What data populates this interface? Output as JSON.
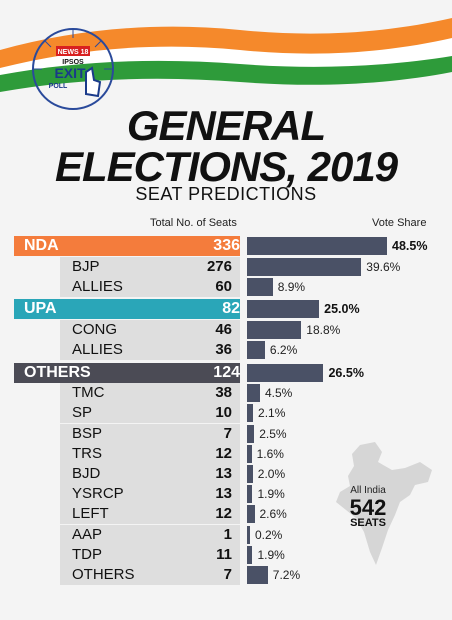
{
  "branding": {
    "badge": "NEWS 18",
    "partner": "IPSOS",
    "exit": "EXIT",
    "poll": "POLL"
  },
  "header": {
    "title_line1": "GENERAL",
    "title_line2": "ELECTIONS, 2019",
    "subtitle": "SEAT PREDICTIONS"
  },
  "columns": {
    "seats": "Total No. of Seats",
    "vote_share": "Vote Share"
  },
  "colors": {
    "nda": "#f47c3c",
    "upa": "#2aa6b8",
    "others": "#4b4b55",
    "bar": "#4a5166"
  },
  "chart_data": {
    "type": "bar",
    "rows": [
      {
        "label": "NDA",
        "seats": "336",
        "vote": 48.5,
        "vote_label": "48.5%",
        "group": "nda"
      },
      {
        "label": "BJP",
        "seats": "276",
        "vote": 39.6,
        "vote_label": "39.6%"
      },
      {
        "label": "ALLIES",
        "seats": "60",
        "vote": 8.9,
        "vote_label": "8.9%"
      },
      {
        "label": "UPA",
        "seats": "82",
        "vote": 25.0,
        "vote_label": "25.0%",
        "group": "upa"
      },
      {
        "label": "CONG",
        "seats": "46",
        "vote": 18.8,
        "vote_label": "18.8%"
      },
      {
        "label": "ALLIES",
        "seats": "36",
        "vote": 6.2,
        "vote_label": "6.2%"
      },
      {
        "label": "OTHERS",
        "seats": "124",
        "vote": 26.5,
        "vote_label": "26.5%",
        "group": "others"
      },
      {
        "label": "TMC",
        "seats": "38",
        "vote": 4.5,
        "vote_label": "4.5%"
      },
      {
        "label": "SP",
        "seats": "10",
        "vote": 2.1,
        "vote_label": "2.1%"
      },
      {
        "label": "BSP",
        "seats": "7",
        "vote": 2.5,
        "vote_label": "2.5%"
      },
      {
        "label": "TRS",
        "seats": "12",
        "vote": 1.6,
        "vote_label": "1.6%"
      },
      {
        "label": "BJD",
        "seats": "13",
        "vote": 2.0,
        "vote_label": "2.0%"
      },
      {
        "label": "YSRCP",
        "seats": "13",
        "vote": 1.9,
        "vote_label": "1.9%"
      },
      {
        "label": "LEFT",
        "seats": "12",
        "vote": 2.6,
        "vote_label": "2.6%"
      },
      {
        "label": "AAP",
        "seats": "1",
        "vote": 0.2,
        "vote_label": "0.2%"
      },
      {
        "label": "TDP",
        "seats": "11",
        "vote": 1.9,
        "vote_label": "1.9%"
      },
      {
        "label": "OTHERS",
        "seats": "7",
        "vote": 7.2,
        "vote_label": "7.2%"
      }
    ]
  },
  "map": {
    "line1": "All India",
    "line2": "542",
    "line3": "SEATS"
  }
}
